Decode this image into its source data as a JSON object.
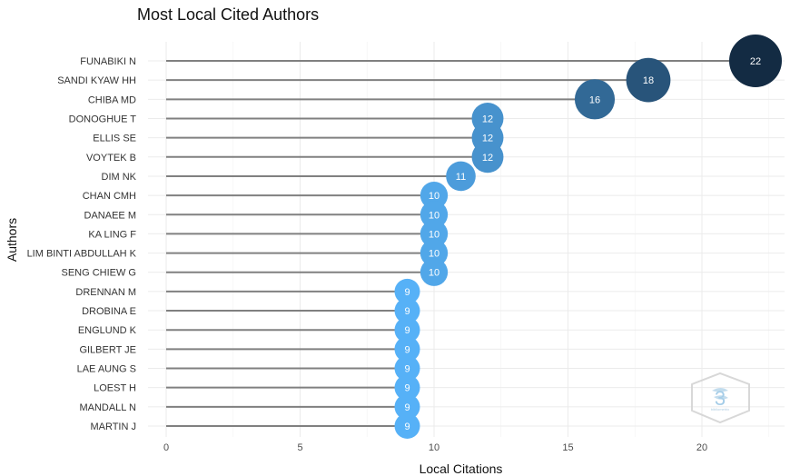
{
  "chart_data": {
    "type": "lollipop",
    "title": "Most Local Cited Authors",
    "xlabel": "Local Citations",
    "ylabel": "Authors",
    "xlim": [
      0,
      23
    ],
    "xticks": [
      0,
      5,
      10,
      15,
      20
    ],
    "grid": true,
    "categories": [
      "FUNABIKI N",
      "SANDI KYAW HH",
      "CHIBA MD",
      "DONOGHUE T",
      "ELLIS SE",
      "VOYTEK B",
      "DIM NK",
      "CHAN CMH",
      "DANAEE M",
      "KA LING F",
      "LIM BINTI ABDULLAH K",
      "SENG CHIEW G",
      "DRENNAN M",
      "DROBINA E",
      "ENGLUND K",
      "GILBERT JE",
      "LAE AUNG S",
      "LOEST H",
      "MANDALL N",
      "MARTIN J"
    ],
    "values": [
      22,
      18,
      16,
      12,
      12,
      12,
      11,
      10,
      10,
      10,
      10,
      10,
      9,
      9,
      9,
      9,
      9,
      9,
      9,
      9
    ],
    "colors": {
      "low": "#56b1f7",
      "high": "#132b43",
      "stem": "#808080",
      "grid": "#ebebeb"
    }
  }
}
